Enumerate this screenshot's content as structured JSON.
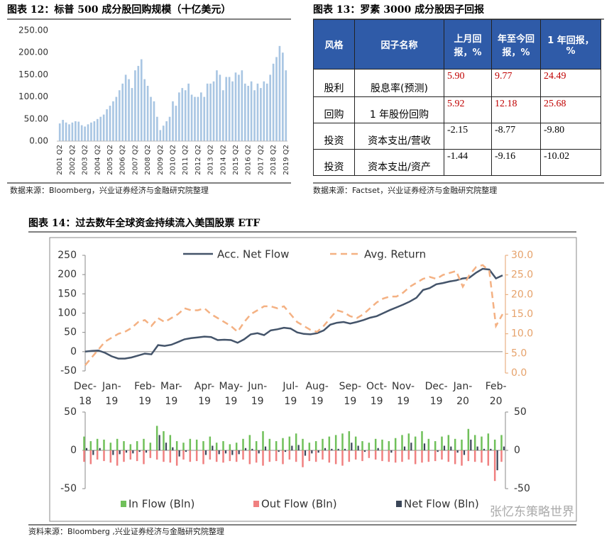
{
  "chart_data": [
    {
      "type": "bar",
      "title": "图表 12：标普 500 成分股回购规模（十亿美元）",
      "categories": [
        "2001 Q2",
        null,
        null,
        null,
        "2002 Q2",
        null,
        null,
        null,
        "2003 Q2",
        null,
        null,
        null,
        "2004 Q2",
        null,
        null,
        null,
        "2005 Q2",
        null,
        null,
        null,
        "2006 Q2",
        null,
        null,
        null,
        "2007 Q2",
        null,
        null,
        null,
        "2008 Q2",
        null,
        null,
        null,
        "2009 Q2",
        null,
        null,
        null,
        "2010 Q2",
        null,
        null,
        null,
        "2011 Q2",
        null,
        null,
        null,
        "2012 Q2",
        null,
        null,
        null,
        "2013 Q2",
        null,
        null,
        null,
        "2014 Q2",
        null,
        null,
        null,
        "2015 Q2",
        null,
        null,
        null,
        "2016 Q2",
        null,
        null,
        null,
        "2017 Q2",
        null,
        null,
        null,
        "2018 Q2",
        null,
        null,
        null,
        "2019 Q2"
      ],
      "values": [
        40,
        48,
        42,
        38,
        42,
        45,
        44,
        36,
        33,
        38,
        42,
        45,
        50,
        55,
        60,
        72,
        80,
        90,
        100,
        115,
        130,
        150,
        140,
        120,
        160,
        170,
        185,
        140,
        125,
        100,
        90,
        55,
        25,
        35,
        45,
        55,
        90,
        80,
        110,
        120,
        115,
        130,
        105,
        100,
        100,
        110,
        100,
        130,
        130,
        135,
        160,
        150,
        115,
        145,
        145,
        135,
        155,
        150,
        160,
        130,
        125,
        135,
        115,
        130,
        120,
        135,
        130,
        150,
        175,
        190,
        215,
        200,
        160
      ],
      "color": "#a9c6e3",
      "ylim": [
        0,
        250
      ],
      "yticks": [
        {
          "value": 0,
          "label": "0.00"
        },
        {
          "value": 50,
          "label": "50.00"
        },
        {
          "value": 100,
          "label": "100.00"
        },
        {
          "value": 150,
          "label": "150.00"
        },
        {
          "value": 200,
          "label": "200.00"
        },
        {
          "value": 250,
          "label": "250.00"
        }
      ]
    },
    {
      "type": "line",
      "title": "图表 14：过去数年全球资金持续流入美国股票 ETF",
      "categories": [
        "Dec-\n18",
        null,
        null,
        null,
        "Jan-\n19",
        null,
        null,
        null,
        null,
        "Feb-\n19",
        null,
        null,
        null,
        "Mar-\n19",
        null,
        null,
        null,
        null,
        "Apr-\n19",
        null,
        null,
        null,
        "May-\n19",
        null,
        null,
        null,
        "Jun-\n19",
        null,
        null,
        null,
        null,
        "Jul-\n19",
        null,
        null,
        null,
        "Aug-\n19",
        null,
        null,
        null,
        null,
        "Sep-\n19",
        null,
        null,
        null,
        "Oct-\n19",
        null,
        null,
        null,
        "Nov-\n19",
        null,
        null,
        null,
        null,
        "Dec-\n19",
        null,
        null,
        null,
        "Jan-\n20",
        null,
        null,
        null,
        null,
        "Feb-\n20",
        null
      ],
      "series": [
        {
          "name": "Acc. Net Flow",
          "color": "#44546a",
          "values": [
            0,
            2,
            3,
            -3,
            -12,
            -18,
            -18,
            -15,
            -10,
            -5,
            -7,
            17,
            15,
            18,
            25,
            32,
            35,
            37,
            39,
            38,
            30,
            31,
            30,
            23,
            32,
            45,
            48,
            43,
            55,
            58,
            62,
            60,
            50,
            46,
            45,
            48,
            55,
            70,
            75,
            77,
            73,
            77,
            82,
            88,
            92,
            100,
            108,
            115,
            122,
            130,
            140,
            160,
            165,
            175,
            178,
            182,
            185,
            190,
            192,
            205,
            215,
            213,
            190,
            198
          ]
        },
        {
          "name": "Avg. Return",
          "color": "#f4b183",
          "dashed": true,
          "axis": "y2",
          "values": [
            2,
            4,
            6,
            8,
            9,
            10,
            10.5,
            11.5,
            13,
            13.5,
            12,
            14,
            13,
            14,
            15,
            16.5,
            16,
            16,
            16.5,
            15,
            14,
            13,
            12,
            10.5,
            13,
            15,
            16,
            17,
            17,
            16.5,
            17,
            15,
            13,
            12,
            11,
            10.5,
            12,
            14,
            16,
            15.5,
            14.5,
            14,
            15,
            16.5,
            18,
            19,
            19.5,
            19.5,
            20.5,
            22,
            23,
            24,
            24.5,
            24,
            25,
            25.5,
            26,
            22,
            25,
            27,
            27.5,
            26,
            12,
            15
          ]
        }
      ],
      "ylim": [
        -50,
        250
      ],
      "yticks": [
        -50,
        0,
        50,
        100,
        150,
        200,
        250
      ],
      "y2lim": [
        0,
        30
      ],
      "y2ticks": [
        {
          "value": 0,
          "label": "0.0"
        },
        {
          "value": 5,
          "label": "5.0"
        },
        {
          "value": 10,
          "label": "10.0"
        },
        {
          "value": 15,
          "label": "15.0"
        },
        {
          "value": 20,
          "label": "20.0"
        },
        {
          "value": 25,
          "label": "25.0"
        },
        {
          "value": 30,
          "label": "30.0"
        }
      ],
      "legend": "top"
    },
    {
      "type": "bar",
      "series": [
        {
          "name": "In Flow (Bln)",
          "color": "#70c05a",
          "values": [
            18,
            12,
            15,
            14,
            10,
            15,
            12,
            8,
            12,
            15,
            10,
            32,
            25,
            20,
            12,
            10,
            15,
            14,
            12,
            18,
            10,
            12,
            8,
            10,
            15,
            20,
            12,
            25,
            15,
            12,
            16,
            18,
            22,
            15,
            10,
            12,
            15,
            18,
            20,
            22,
            25,
            18,
            12,
            10,
            15,
            14,
            12,
            16,
            20,
            22,
            18,
            25,
            15,
            12,
            18,
            20,
            15,
            14,
            28,
            20,
            18,
            22,
            14,
            20
          ]
        },
        {
          "name": "Out Flow (Bln)",
          "color": "#f08080",
          "values": [
            -15,
            -18,
            -12,
            -14,
            -16,
            -20,
            -15,
            -12,
            -14,
            -18,
            -10,
            -12,
            -15,
            -16,
            -20,
            -12,
            -15,
            -14,
            -18,
            -12,
            -15,
            -16,
            -14,
            -15,
            -12,
            -18,
            -16,
            -20,
            -15,
            -14,
            -18,
            -12,
            -15,
            -22,
            -14,
            -15,
            -12,
            -16,
            -18,
            -20,
            -15,
            -12,
            -14,
            -10,
            -12,
            -14,
            -15,
            -16,
            -15,
            -12,
            -18,
            -16,
            -15,
            -14,
            -12,
            -15,
            -18,
            -20,
            -14,
            -15,
            -16,
            -20,
            -40,
            -15
          ]
        },
        {
          "name": "Net Flow (Bln)",
          "color": "#3b4658",
          "values": [
            3,
            -6,
            3,
            0,
            -6,
            -5,
            -3,
            -4,
            -2,
            -3,
            0,
            20,
            10,
            4,
            -8,
            -2,
            0,
            0,
            -6,
            6,
            -5,
            -4,
            -6,
            -5,
            3,
            2,
            -4,
            5,
            0,
            -2,
            -2,
            6,
            7,
            -7,
            -4,
            -3,
            3,
            2,
            2,
            2,
            10,
            6,
            -2,
            0,
            3,
            0,
            -3,
            0,
            5,
            10,
            0,
            9,
            0,
            -2,
            6,
            5,
            -3,
            -6,
            14,
            5,
            2,
            2,
            -26,
            5
          ]
        }
      ],
      "ylim": [
        -50,
        50
      ],
      "yticks": [
        -50,
        0,
        50
      ],
      "y2lim": [
        -50,
        50
      ],
      "y2ticks": [
        -50,
        0,
        50
      ],
      "legend": "bottom"
    }
  ],
  "table": {
    "title": "图表 13：罗素 3000 成分股因子回报",
    "header": [
      "风格",
      "因子名称",
      "上月回报，%",
      "年至今回报，%",
      "1 年回报，%"
    ],
    "rows": [
      [
        "股利",
        "股息率(预测)",
        "5.90",
        "9.77",
        "24.49"
      ],
      [
        "回购",
        "1 年股份回购",
        "5.92",
        "12.18",
        "25.68"
      ],
      [
        "投资",
        "资本支出/营收",
        "-2.15",
        "-8.77",
        "-9.80"
      ],
      [
        "投资",
        "资本支出/资产",
        "-1.44",
        "-9.16",
        "-10.02"
      ]
    ]
  },
  "sources": [
    "数据来源：Bloomberg，兴业证券经济与金融研究院整理",
    "数据来源：Factset，兴业证券经济与金融研究院整理",
    "资料来源：Bloomberg ,兴业证券经济与金融研究院整理"
  ],
  "watermark": "张忆东策略世界"
}
